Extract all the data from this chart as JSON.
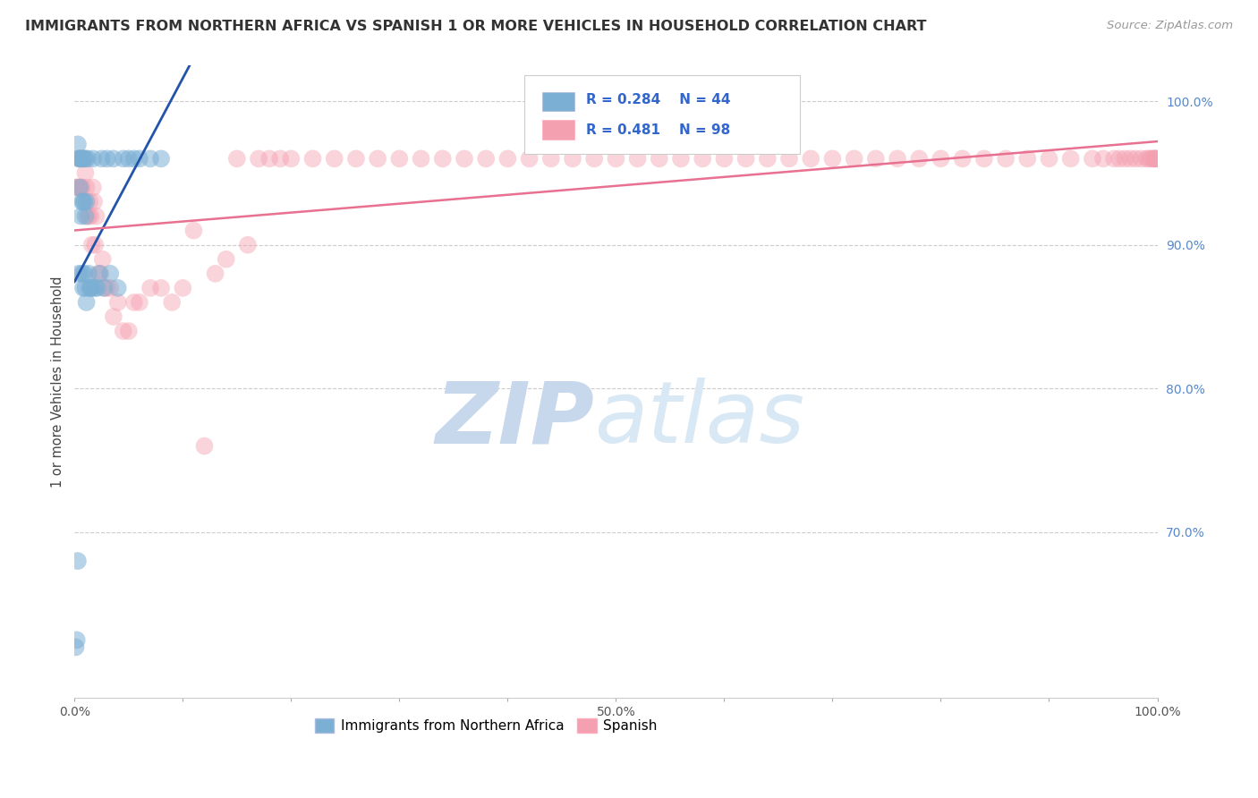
{
  "title": "IMMIGRANTS FROM NORTHERN AFRICA VS SPANISH 1 OR MORE VEHICLES IN HOUSEHOLD CORRELATION CHART",
  "source": "Source: ZipAtlas.com",
  "ylabel": "1 or more Vehicles in Household",
  "legend_blue_label": "Immigrants from Northern Africa",
  "legend_pink_label": "Spanish",
  "R_blue": 0.284,
  "N_blue": 44,
  "R_pink": 0.481,
  "N_pink": 98,
  "blue_color": "#7BAFD4",
  "pink_color": "#F4A0B0",
  "blue_line_color": "#2255AA",
  "pink_line_color": "#E87090",
  "xlim": [
    0.0,
    1.0
  ],
  "ylim": [
    0.585,
    1.025
  ],
  "yticks": [
    0.7,
    0.8,
    0.9,
    1.0
  ],
  "ytick_labels": [
    "70.0%",
    "80.0%",
    "90.0%",
    "100.0%"
  ],
  "xticks": [
    0.0,
    0.1,
    0.2,
    0.3,
    0.4,
    0.5,
    0.6,
    0.7,
    0.8,
    0.9,
    1.0
  ],
  "xtick_labels": [
    "0.0%",
    "",
    "",
    "",
    "",
    "50.0%",
    "",
    "",
    "",
    "",
    "100.0%"
  ],
  "blue_x": [
    0.001,
    0.002,
    0.003,
    0.003,
    0.004,
    0.004,
    0.005,
    0.005,
    0.006,
    0.006,
    0.007,
    0.007,
    0.007,
    0.008,
    0.008,
    0.008,
    0.009,
    0.009,
    0.01,
    0.01,
    0.01,
    0.011,
    0.011,
    0.012,
    0.013,
    0.014,
    0.015,
    0.016,
    0.017,
    0.019,
    0.021,
    0.023,
    0.025,
    0.027,
    0.03,
    0.033,
    0.036,
    0.04,
    0.045,
    0.05,
    0.055,
    0.06,
    0.07,
    0.08
  ],
  "blue_y": [
    0.62,
    0.625,
    0.68,
    0.97,
    0.88,
    0.96,
    0.94,
    0.96,
    0.92,
    0.96,
    0.88,
    0.93,
    0.96,
    0.87,
    0.93,
    0.96,
    0.88,
    0.93,
    0.87,
    0.92,
    0.96,
    0.86,
    0.93,
    0.96,
    0.88,
    0.87,
    0.87,
    0.87,
    0.96,
    0.87,
    0.87,
    0.88,
    0.96,
    0.87,
    0.96,
    0.88,
    0.96,
    0.87,
    0.96,
    0.96,
    0.96,
    0.96,
    0.96,
    0.96
  ],
  "pink_x": [
    0.001,
    0.002,
    0.003,
    0.004,
    0.005,
    0.006,
    0.007,
    0.008,
    0.009,
    0.01,
    0.011,
    0.012,
    0.013,
    0.014,
    0.015,
    0.016,
    0.017,
    0.018,
    0.019,
    0.02,
    0.022,
    0.024,
    0.026,
    0.028,
    0.03,
    0.033,
    0.036,
    0.04,
    0.045,
    0.05,
    0.055,
    0.06,
    0.07,
    0.08,
    0.09,
    0.1,
    0.11,
    0.12,
    0.13,
    0.14,
    0.15,
    0.16,
    0.17,
    0.18,
    0.19,
    0.2,
    0.22,
    0.24,
    0.26,
    0.28,
    0.3,
    0.32,
    0.34,
    0.36,
    0.38,
    0.4,
    0.42,
    0.44,
    0.46,
    0.48,
    0.5,
    0.52,
    0.54,
    0.56,
    0.58,
    0.6,
    0.62,
    0.64,
    0.66,
    0.68,
    0.7,
    0.72,
    0.74,
    0.76,
    0.78,
    0.8,
    0.82,
    0.84,
    0.86,
    0.88,
    0.9,
    0.92,
    0.94,
    0.95,
    0.96,
    0.965,
    0.97,
    0.975,
    0.98,
    0.985,
    0.99,
    0.992,
    0.994,
    0.996,
    0.997,
    0.998,
    0.999,
    1.0
  ],
  "pink_y": [
    0.94,
    0.94,
    0.94,
    0.96,
    0.94,
    0.94,
    0.94,
    0.96,
    0.96,
    0.95,
    0.94,
    0.92,
    0.92,
    0.93,
    0.92,
    0.9,
    0.94,
    0.93,
    0.9,
    0.92,
    0.88,
    0.88,
    0.89,
    0.87,
    0.87,
    0.87,
    0.85,
    0.86,
    0.84,
    0.84,
    0.86,
    0.86,
    0.87,
    0.87,
    0.86,
    0.87,
    0.91,
    0.76,
    0.88,
    0.89,
    0.96,
    0.9,
    0.96,
    0.96,
    0.96,
    0.96,
    0.96,
    0.96,
    0.96,
    0.96,
    0.96,
    0.96,
    0.96,
    0.96,
    0.96,
    0.96,
    0.96,
    0.96,
    0.96,
    0.96,
    0.96,
    0.96,
    0.96,
    0.96,
    0.96,
    0.96,
    0.96,
    0.96,
    0.96,
    0.96,
    0.96,
    0.96,
    0.96,
    0.96,
    0.96,
    0.96,
    0.96,
    0.96,
    0.96,
    0.96,
    0.96,
    0.96,
    0.96,
    0.96,
    0.96,
    0.96,
    0.96,
    0.96,
    0.96,
    0.96,
    0.96,
    0.96,
    0.96,
    0.96,
    0.96,
    0.96,
    0.96,
    0.96
  ]
}
